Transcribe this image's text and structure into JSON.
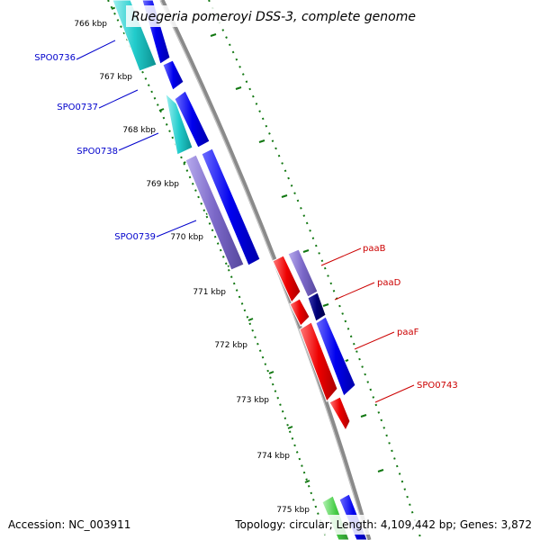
{
  "title": "Ruegeria pomeroyi DSS-3, complete genome",
  "footer": {
    "accession": "Accession: NC_003911",
    "summary": "Topology: circular; Length: 4,109,442 bp; Genes: 3,872"
  },
  "ruler_labels": [
    "766 kbp",
    "767 kbp",
    "768 kbp",
    "769 kbp",
    "770 kbp",
    "771 kbp",
    "772 kbp",
    "773 kbp",
    "774 kbp",
    "775 kbp"
  ],
  "gene_labels": {
    "SPO0736": "SPO0736",
    "SPO0737": "SPO0737",
    "SPO0738": "SPO0738",
    "SPO0739": "SPO0739",
    "paaB": "paaB",
    "paaD": "paaD",
    "paaF": "paaF",
    "SPO0743": "SPO0743"
  },
  "colors": {
    "left_label": "#0000cc",
    "right_label": "#cc0000",
    "backbone": "#888888",
    "ruler": "#117711",
    "cyan": "#22cccc",
    "blue": "#0000ee",
    "purple": "#7b68c8",
    "red": "#ee0000",
    "navy": "#000077",
    "green": "#44cc44"
  }
}
